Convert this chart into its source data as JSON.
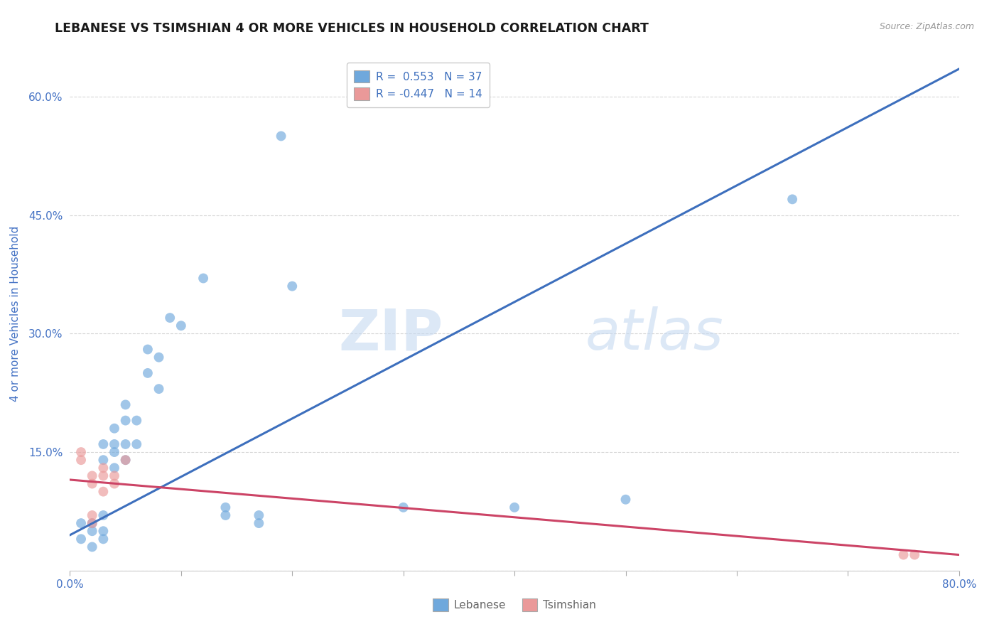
{
  "title": "LEBANESE VS TSIMSHIAN 4 OR MORE VEHICLES IN HOUSEHOLD CORRELATION CHART",
  "source": "Source: ZipAtlas.com",
  "ylabel": "4 or more Vehicles in Household",
  "xlim": [
    0.0,
    0.8
  ],
  "ylim": [
    0.0,
    0.65
  ],
  "xticks": [
    0.0,
    0.1,
    0.2,
    0.3,
    0.4,
    0.5,
    0.6,
    0.7,
    0.8
  ],
  "xticklabels": [
    "0.0%",
    "",
    "",
    "",
    "",
    "",
    "",
    "",
    "80.0%"
  ],
  "yticks": [
    0.0,
    0.15,
    0.3,
    0.45,
    0.6
  ],
  "yticklabels": [
    "",
    "15.0%",
    "30.0%",
    "45.0%",
    "60.0%"
  ],
  "legend_blue_R": "0.553",
  "legend_blue_N": "37",
  "legend_pink_R": "-0.447",
  "legend_pink_N": "14",
  "blue_scatter": [
    [
      0.01,
      0.04
    ],
    [
      0.01,
      0.06
    ],
    [
      0.02,
      0.03
    ],
    [
      0.02,
      0.05
    ],
    [
      0.02,
      0.06
    ],
    [
      0.03,
      0.04
    ],
    [
      0.03,
      0.05
    ],
    [
      0.03,
      0.07
    ],
    [
      0.03,
      0.14
    ],
    [
      0.03,
      0.16
    ],
    [
      0.04,
      0.13
    ],
    [
      0.04,
      0.15
    ],
    [
      0.04,
      0.16
    ],
    [
      0.04,
      0.18
    ],
    [
      0.05,
      0.14
    ],
    [
      0.05,
      0.16
    ],
    [
      0.05,
      0.19
    ],
    [
      0.05,
      0.21
    ],
    [
      0.06,
      0.16
    ],
    [
      0.06,
      0.19
    ],
    [
      0.07,
      0.25
    ],
    [
      0.07,
      0.28
    ],
    [
      0.08,
      0.27
    ],
    [
      0.08,
      0.23
    ],
    [
      0.09,
      0.32
    ],
    [
      0.1,
      0.31
    ],
    [
      0.12,
      0.37
    ],
    [
      0.14,
      0.07
    ],
    [
      0.14,
      0.08
    ],
    [
      0.17,
      0.06
    ],
    [
      0.17,
      0.07
    ],
    [
      0.19,
      0.55
    ],
    [
      0.2,
      0.36
    ],
    [
      0.3,
      0.08
    ],
    [
      0.4,
      0.08
    ],
    [
      0.5,
      0.09
    ],
    [
      0.65,
      0.47
    ]
  ],
  "pink_scatter": [
    [
      0.01,
      0.14
    ],
    [
      0.01,
      0.15
    ],
    [
      0.02,
      0.06
    ],
    [
      0.02,
      0.07
    ],
    [
      0.02,
      0.11
    ],
    [
      0.02,
      0.12
    ],
    [
      0.03,
      0.1
    ],
    [
      0.03,
      0.12
    ],
    [
      0.03,
      0.13
    ],
    [
      0.04,
      0.11
    ],
    [
      0.04,
      0.12
    ],
    [
      0.05,
      0.14
    ],
    [
      0.75,
      0.02
    ],
    [
      0.76,
      0.02
    ]
  ],
  "blue_line_x": [
    0.0,
    0.8
  ],
  "blue_line_y": [
    0.045,
    0.635
  ],
  "pink_line_x": [
    0.0,
    0.8
  ],
  "pink_line_y": [
    0.115,
    0.02
  ],
  "blue_color": "#6fa8dc",
  "pink_color": "#ea9999",
  "blue_line_color": "#3d6fbd",
  "pink_line_color": "#cc4466",
  "watermark_zip": "ZIP",
  "watermark_atlas": "atlas",
  "background_color": "#ffffff",
  "axis_color": "#4472c4",
  "grid_color": "#cccccc"
}
